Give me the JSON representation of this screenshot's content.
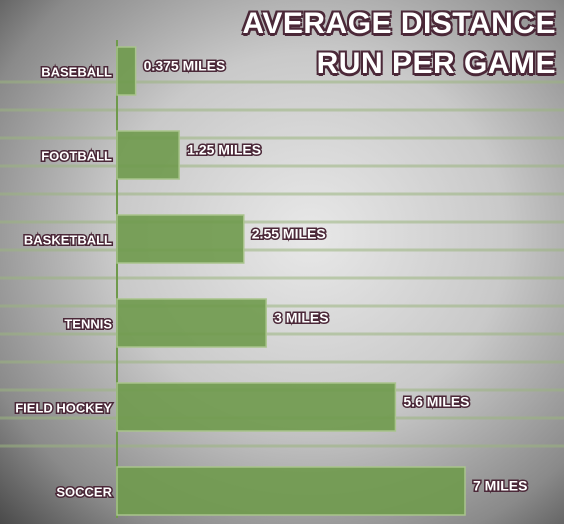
{
  "chart_data": {
    "type": "barh",
    "title": "AVERAGE DISTANCE RUN PER GAME",
    "categories": [
      "BASEBALL",
      "FOOTBALL",
      "BASKETBALL",
      "TENNIS",
      "FIELD HOCKEY",
      "SOCCER"
    ],
    "values": [
      0.375,
      1.25,
      2.55,
      3,
      5.6,
      7
    ],
    "value_labels": [
      "0.375 MILES",
      "1.25 MILES",
      "2.55 MILES",
      "3 MILES",
      "5.6 MILES",
      "7 MILES"
    ],
    "color": "#6f9a4c",
    "xlim": [
      0,
      7
    ]
  }
}
